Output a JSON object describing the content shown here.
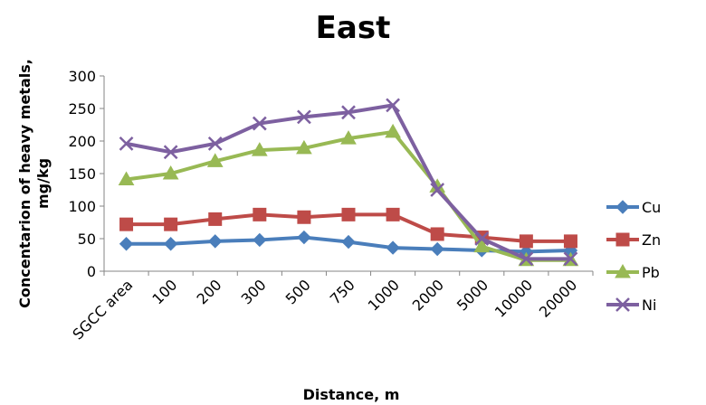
{
  "chart_data": {
    "type": "line",
    "title": "East",
    "xlabel": "Distance, m",
    "ylabel": "Concentarion of heavy metals, mg/kg",
    "categories": [
      "SGCC area",
      "100",
      "200",
      "300",
      "500",
      "750",
      "1000",
      "2000",
      "5000",
      "10000",
      "20000"
    ],
    "ylim": [
      0,
      300
    ],
    "yticks": [
      0,
      50,
      100,
      150,
      200,
      250,
      300
    ],
    "grid": false,
    "legend": "right",
    "series": [
      {
        "name": "Cu",
        "color": "#4a7ebb",
        "marker": "diamond",
        "values": [
          42,
          42,
          46,
          48,
          52,
          45,
          36,
          34,
          32,
          30,
          32
        ]
      },
      {
        "name": "Zn",
        "color": "#be4b48",
        "marker": "square",
        "values": [
          72,
          72,
          80,
          87,
          83,
          87,
          87,
          57,
          52,
          46,
          46
        ]
      },
      {
        "name": "Pb",
        "color": "#98b954",
        "marker": "triangle",
        "values": [
          141,
          150,
          169,
          186,
          189,
          204,
          214,
          130,
          38,
          17,
          17
        ]
      },
      {
        "name": "Ni",
        "color": "#7d60a0",
        "marker": "x",
        "values": [
          196,
          183,
          196,
          227,
          237,
          244,
          255,
          125,
          50,
          19,
          19
        ]
      }
    ]
  }
}
